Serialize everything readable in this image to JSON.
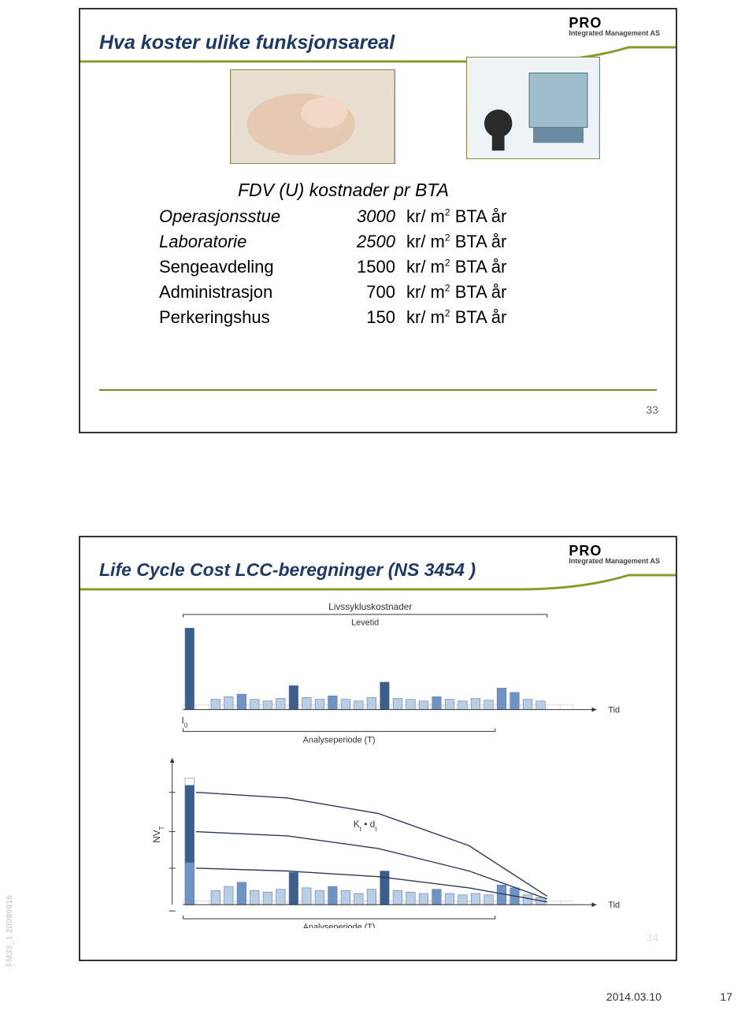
{
  "logo": {
    "brand": "PRO",
    "sub": "Integrated Management AS"
  },
  "slide1": {
    "title": "Hva koster ulike funksjonsareal",
    "subtitle": "FDV (U) kostnader pr BTA",
    "rows": [
      {
        "label": "Operasjonsstue",
        "value": "3000",
        "unit_prefix": "kr/ m",
        "unit_sup": "2",
        "unit_suffix": " BTA år",
        "italic": true
      },
      {
        "label": "Laboratorie",
        "value": "2500",
        "unit_prefix": "kr/ m",
        "unit_sup": "2",
        "unit_suffix": " BTA år",
        "italic": true
      },
      {
        "label": "Sengeavdeling",
        "value": "1500",
        "unit_prefix": "kr/ m",
        "unit_sup": "2",
        "unit_suffix": " BTA år",
        "italic": false
      },
      {
        "label": "Administrasjon",
        "value": "700",
        "unit_prefix": "kr/ m",
        "unit_sup": "2",
        "unit_suffix": " BTA år",
        "italic": false
      },
      {
        "label": "Perkeringshus",
        "value": "150",
        "unit_prefix": "kr/ m",
        "unit_sup": "2",
        "unit_suffix": " BTA år",
        "italic": false
      }
    ],
    "slide_number": "33"
  },
  "slide2": {
    "title": "Life Cycle Cost LCC-beregninger (NS 3454 )",
    "labels": {
      "top": "Livssykluskostnader",
      "levetid": "Levetid",
      "tid": "Tid",
      "analyse": "Analyseperiode (T)",
      "i0": "I",
      "i0_sub": "0",
      "nvt": "NV",
      "nvt_sub": "T",
      "kd": "K",
      "kd_sub1": "t",
      "kd_mid": " • d",
      "kd_sub2": "t"
    },
    "top_chart": {
      "type": "bar",
      "xlim": [
        0,
        30
      ],
      "ylim": [
        0,
        10
      ],
      "bar_width": 0.7,
      "background_color": "#ffffff",
      "grid_color": "#d0d0d0",
      "colors": {
        "light": "#b9cde5",
        "mid": "#6f94c4",
        "dark": "#3b5e8c",
        "outline": "#5a7aa8"
      },
      "bars": [
        {
          "x": 0,
          "h": 9.5,
          "c": "dark"
        },
        {
          "x": 2,
          "h": 1.2,
          "c": "light"
        },
        {
          "x": 3,
          "h": 1.5,
          "c": "light"
        },
        {
          "x": 4,
          "h": 1.8,
          "c": "mid"
        },
        {
          "x": 5,
          "h": 1.2,
          "c": "light"
        },
        {
          "x": 6,
          "h": 1.0,
          "c": "light"
        },
        {
          "x": 7,
          "h": 1.3,
          "c": "light"
        },
        {
          "x": 8,
          "h": 2.8,
          "c": "dark"
        },
        {
          "x": 9,
          "h": 1.4,
          "c": "light"
        },
        {
          "x": 10,
          "h": 1.2,
          "c": "light"
        },
        {
          "x": 11,
          "h": 1.6,
          "c": "mid"
        },
        {
          "x": 12,
          "h": 1.2,
          "c": "light"
        },
        {
          "x": 13,
          "h": 1.0,
          "c": "light"
        },
        {
          "x": 14,
          "h": 1.4,
          "c": "light"
        },
        {
          "x": 15,
          "h": 3.2,
          "c": "dark"
        },
        {
          "x": 16,
          "h": 1.3,
          "c": "light"
        },
        {
          "x": 17,
          "h": 1.2,
          "c": "light"
        },
        {
          "x": 18,
          "h": 1.0,
          "c": "light"
        },
        {
          "x": 19,
          "h": 1.5,
          "c": "mid"
        },
        {
          "x": 20,
          "h": 1.2,
          "c": "light"
        },
        {
          "x": 21,
          "h": 1.0,
          "c": "light"
        },
        {
          "x": 22,
          "h": 1.3,
          "c": "light"
        },
        {
          "x": 23,
          "h": 1.1,
          "c": "light"
        },
        {
          "x": 24,
          "h": 2.5,
          "c": "mid"
        },
        {
          "x": 25,
          "h": 2.0,
          "c": "mid"
        },
        {
          "x": 26,
          "h": 1.2,
          "c": "light"
        },
        {
          "x": 27,
          "h": 1.0,
          "c": "light"
        }
      ]
    },
    "bottom_chart": {
      "type": "bar",
      "xlim": [
        0,
        30
      ],
      "ylim": [
        0,
        10
      ],
      "bar_width": 0.7,
      "curve_stroke": "#2b3a55",
      "curve_width": 1.4,
      "bars": [
        {
          "x": 0,
          "h": 9.0,
          "c": "white"
        },
        {
          "x": 0,
          "h": 3.0,
          "c": "mid"
        },
        {
          "x": 0,
          "h": 5.5,
          "c": "dark",
          "y0": 3.0
        },
        {
          "x": 2,
          "h": 1.0,
          "c": "light"
        },
        {
          "x": 3,
          "h": 1.3,
          "c": "light"
        },
        {
          "x": 4,
          "h": 1.6,
          "c": "mid"
        },
        {
          "x": 5,
          "h": 1.0,
          "c": "light"
        },
        {
          "x": 6,
          "h": 0.9,
          "c": "light"
        },
        {
          "x": 7,
          "h": 1.1,
          "c": "light"
        },
        {
          "x": 8,
          "h": 2.3,
          "c": "dark"
        },
        {
          "x": 9,
          "h": 1.2,
          "c": "light"
        },
        {
          "x": 10,
          "h": 1.0,
          "c": "light"
        },
        {
          "x": 11,
          "h": 1.3,
          "c": "mid"
        },
        {
          "x": 12,
          "h": 1.0,
          "c": "light"
        },
        {
          "x": 13,
          "h": 0.8,
          "c": "light"
        },
        {
          "x": 14,
          "h": 1.1,
          "c": "light"
        },
        {
          "x": 15,
          "h": 2.4,
          "c": "dark"
        },
        {
          "x": 16,
          "h": 1.0,
          "c": "light"
        },
        {
          "x": 17,
          "h": 0.9,
          "c": "light"
        },
        {
          "x": 18,
          "h": 0.8,
          "c": "light"
        },
        {
          "x": 19,
          "h": 1.1,
          "c": "mid"
        },
        {
          "x": 20,
          "h": 0.8,
          "c": "light"
        },
        {
          "x": 21,
          "h": 0.7,
          "c": "light"
        },
        {
          "x": 22,
          "h": 0.8,
          "c": "light"
        },
        {
          "x": 23,
          "h": 0.7,
          "c": "light"
        },
        {
          "x": 24,
          "h": 1.4,
          "c": "mid"
        },
        {
          "x": 25,
          "h": 1.2,
          "c": "mid"
        },
        {
          "x": 26,
          "h": 0.7,
          "c": "light"
        },
        {
          "x": 27,
          "h": 0.5,
          "c": "light"
        }
      ],
      "curves": [
        [
          [
            1,
            8.0
          ],
          [
            8,
            7.6
          ],
          [
            15,
            6.5
          ],
          [
            22,
            4.2
          ],
          [
            28,
            0.6
          ]
        ],
        [
          [
            1,
            5.2
          ],
          [
            8,
            4.9
          ],
          [
            15,
            4.0
          ],
          [
            22,
            2.4
          ],
          [
            28,
            0.4
          ]
        ],
        [
          [
            1,
            2.6
          ],
          [
            8,
            2.4
          ],
          [
            15,
            2.0
          ],
          [
            22,
            1.2
          ],
          [
            28,
            0.2
          ]
        ]
      ]
    },
    "slide_number": "34"
  },
  "footer": {
    "code": "FM33_1 20090916",
    "date": "2014.03.10",
    "page": "17"
  }
}
